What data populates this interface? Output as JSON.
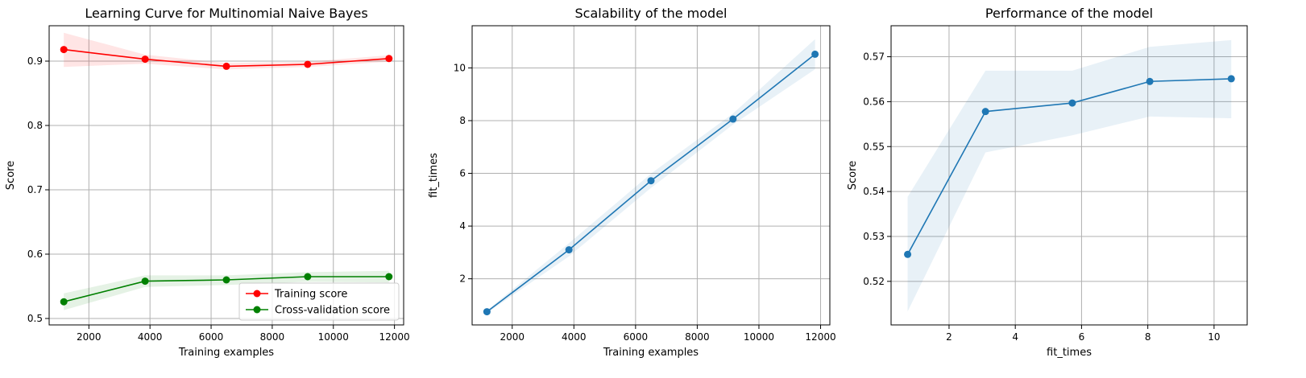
{
  "chart_data": [
    {
      "type": "line",
      "title": "Learning Curve for Multinomial Naive Bayes",
      "xlabel": "Training examples",
      "ylabel": "Score",
      "xlim": [
        700,
        12300
      ],
      "ylim": [
        0.49,
        0.955
      ],
      "xticks": [
        2000,
        4000,
        6000,
        8000,
        10000,
        12000
      ],
      "yticks": [
        0.5,
        0.6,
        0.7,
        0.8,
        0.9
      ],
      "grid": true,
      "legend_position": "lower-right",
      "x": [
        1180,
        3840,
        6500,
        9160,
        11820
      ],
      "series": [
        {
          "name": "Training score",
          "color": "#ff0000",
          "band_color": "#ff0000",
          "values": [
            0.918,
            0.903,
            0.892,
            0.895,
            0.904
          ],
          "lower": [
            0.891,
            0.896,
            0.887,
            0.891,
            0.899
          ],
          "upper": [
            0.944,
            0.91,
            0.897,
            0.899,
            0.909
          ]
        },
        {
          "name": "Cross-validation score",
          "color": "#008000",
          "band_color": "#008000",
          "values": [
            0.526,
            0.558,
            0.56,
            0.565,
            0.565
          ],
          "lower": [
            0.513,
            0.549,
            0.552,
            0.557,
            0.556
          ],
          "upper": [
            0.539,
            0.567,
            0.567,
            0.572,
            0.574
          ]
        }
      ]
    },
    {
      "type": "line",
      "title": "Scalability of the model",
      "xlabel": "Training examples",
      "ylabel": "fit_times",
      "xlim": [
        700,
        12300
      ],
      "ylim": [
        0.25,
        11.6
      ],
      "xticks": [
        2000,
        4000,
        6000,
        8000,
        10000,
        12000
      ],
      "yticks": [
        2,
        4,
        6,
        8,
        10
      ],
      "grid": true,
      "x": [
        1180,
        3840,
        6500,
        9160,
        11820
      ],
      "series": [
        {
          "color": "#1f77b4",
          "band_color": "#1f77b4",
          "values": [
            0.75,
            3.1,
            5.72,
            8.06,
            10.52
          ],
          "lower": [
            0.7,
            2.85,
            5.45,
            7.85,
            9.95
          ],
          "upper": [
            0.8,
            3.35,
            5.99,
            8.27,
            11.09
          ]
        }
      ]
    },
    {
      "type": "line",
      "title": "Performance of the model",
      "xlabel": "fit_times",
      "ylabel": "Score",
      "xlim": [
        0.25,
        11.0
      ],
      "ylim": [
        0.5103,
        0.5769
      ],
      "xticks": [
        2,
        4,
        6,
        8,
        10
      ],
      "yticks": [
        0.52,
        0.53,
        0.54,
        0.55,
        0.56,
        0.57
      ],
      "grid": true,
      "x": [
        0.75,
        3.1,
        5.72,
        8.06,
        10.52
      ],
      "series": [
        {
          "color": "#1f77b4",
          "band_color": "#1f77b4",
          "values": [
            0.526,
            0.5578,
            0.5597,
            0.5645,
            0.5651
          ],
          "lower": [
            0.5133,
            0.5487,
            0.5525,
            0.5567,
            0.5563
          ],
          "upper": [
            0.5388,
            0.5669,
            0.5669,
            0.5722,
            0.5737
          ]
        }
      ]
    }
  ]
}
